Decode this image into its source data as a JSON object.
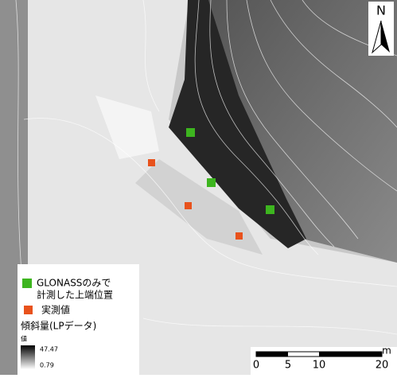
{
  "north_arrow": {
    "label": "N"
  },
  "legend": {
    "items": [
      {
        "lines": [
          "GLONASSのみで",
          "計測した上端位置"
        ],
        "color": "#3db51f"
      },
      {
        "lines": [
          "実測値"
        ],
        "color": "#e8521c"
      }
    ],
    "raster": {
      "title": "傾斜量(LPデータ)",
      "subtitle": "値",
      "max": "47.47",
      "min": "0.79"
    }
  },
  "scale_bar": {
    "labels": [
      "0",
      "5",
      "10",
      "20"
    ],
    "unit": "m"
  }
}
